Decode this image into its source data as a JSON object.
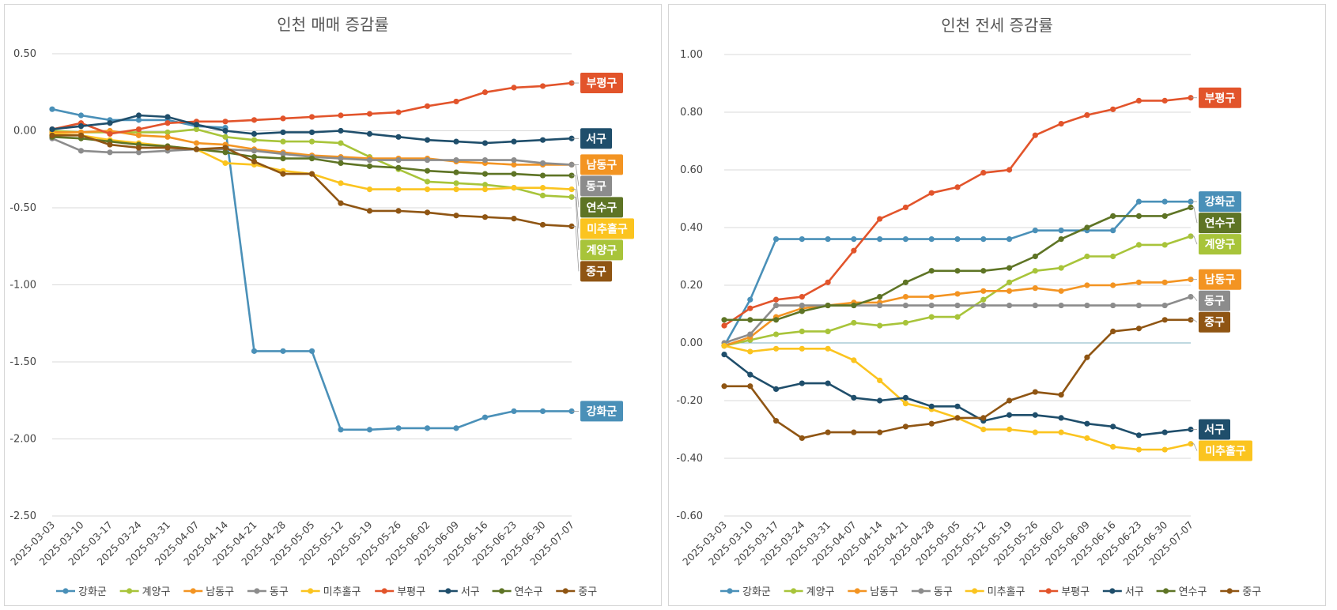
{
  "colors": {
    "강화군": "#4a90b8",
    "계양구": "#a8c43a",
    "남동구": "#f39422",
    "동구": "#8c8c8c",
    "미추홀구": "#fbc41f",
    "부평구": "#e2542b",
    "서구": "#1f4e6b",
    "연수구": "#5e7425",
    "중구": "#8f5513"
  },
  "chart_data": [
    {
      "type": "line",
      "title": "인천 매매 증감률",
      "xlabel": "",
      "ylabel": "",
      "ylim": [
        -2.5,
        0.5
      ],
      "y_ticks": [
        "0.50",
        "0.00",
        "-0.50",
        "-1.00",
        "-1.50",
        "-2.00",
        "-2.50"
      ],
      "grid": true,
      "legend": "bottom",
      "categories": [
        "2025-03-03",
        "2025-03-10",
        "2025-03-17",
        "2025-03-24",
        "2025-03-31",
        "2025-04-07",
        "2025-04-14",
        "2025-04-21",
        "2025-04-28",
        "2025-05-05",
        "2025-05-12",
        "2025-05-19",
        "2025-05-26",
        "2025-06-02",
        "2025-06-09",
        "2025-06-16",
        "2025-06-23",
        "2025-06-30",
        "2025-07-07"
      ],
      "series": [
        {
          "name": "강화군",
          "values": [
            0.14,
            0.1,
            0.07,
            0.07,
            0.07,
            0.03,
            0.02,
            -1.43,
            -1.43,
            -1.43,
            -1.94,
            -1.94,
            -1.93,
            -1.93,
            -1.93,
            -1.86,
            -1.82,
            -1.82,
            -1.82
          ]
        },
        {
          "name": "계양구",
          "values": [
            0.0,
            -0.01,
            -0.01,
            -0.01,
            -0.01,
            0.01,
            -0.04,
            -0.06,
            -0.07,
            -0.07,
            -0.08,
            -0.17,
            -0.25,
            -0.33,
            -0.34,
            -0.35,
            -0.37,
            -0.42,
            -0.43
          ]
        },
        {
          "name": "남동구",
          "values": [
            -0.01,
            -0.01,
            0.0,
            -0.03,
            -0.04,
            -0.08,
            -0.09,
            -0.12,
            -0.14,
            -0.16,
            -0.17,
            -0.18,
            -0.18,
            -0.18,
            -0.2,
            -0.21,
            -0.22,
            -0.22,
            -0.22
          ]
        },
        {
          "name": "동구",
          "values": [
            -0.05,
            -0.13,
            -0.14,
            -0.14,
            -0.13,
            -0.12,
            -0.12,
            -0.13,
            -0.15,
            -0.17,
            -0.18,
            -0.19,
            -0.19,
            -0.19,
            -0.19,
            -0.19,
            -0.19,
            -0.21,
            -0.22
          ]
        },
        {
          "name": "미추홀구",
          "values": [
            -0.02,
            -0.03,
            -0.06,
            -0.08,
            -0.1,
            -0.12,
            -0.21,
            -0.22,
            -0.26,
            -0.28,
            -0.34,
            -0.38,
            -0.38,
            -0.38,
            -0.38,
            -0.38,
            -0.37,
            -0.37,
            -0.38
          ]
        },
        {
          "name": "부평구",
          "values": [
            0.01,
            0.05,
            -0.02,
            0.01,
            0.05,
            0.06,
            0.06,
            0.07,
            0.08,
            0.09,
            0.1,
            0.11,
            0.12,
            0.16,
            0.19,
            0.25,
            0.28,
            0.29,
            0.31
          ]
        },
        {
          "name": "서구",
          "values": [
            0.01,
            0.03,
            0.05,
            0.1,
            0.09,
            0.04,
            0.0,
            -0.02,
            -0.01,
            -0.01,
            0.0,
            -0.02,
            -0.04,
            -0.06,
            -0.07,
            -0.08,
            -0.07,
            -0.06,
            -0.05
          ]
        },
        {
          "name": "연수구",
          "values": [
            -0.04,
            -0.05,
            -0.07,
            -0.09,
            -0.1,
            -0.12,
            -0.14,
            -0.17,
            -0.18,
            -0.18,
            -0.21,
            -0.23,
            -0.24,
            -0.26,
            -0.27,
            -0.28,
            -0.28,
            -0.29,
            -0.29
          ]
        },
        {
          "name": "중구",
          "values": [
            -0.03,
            -0.03,
            -0.09,
            -0.11,
            -0.11,
            -0.12,
            -0.11,
            -0.2,
            -0.28,
            -0.28,
            -0.47,
            -0.52,
            -0.52,
            -0.53,
            -0.55,
            -0.56,
            -0.57,
            -0.61,
            -0.62
          ]
        }
      ],
      "end_labels": [
        "부평구",
        "서구",
        "남동구",
        "동구",
        "연수구",
        "미추홀구",
        "계양구",
        "중구",
        "강화군"
      ]
    },
    {
      "type": "line",
      "title": "인천 전세 증감률",
      "xlabel": "",
      "ylabel": "",
      "ylim": [
        -0.6,
        1.0
      ],
      "y_ticks": [
        "1.00",
        "0.80",
        "0.60",
        "0.40",
        "0.20",
        "0.00",
        "-0.20",
        "-0.40",
        "-0.60"
      ],
      "grid": true,
      "legend": "bottom",
      "categories": [
        "2025-03-03",
        "2025-03-10",
        "2025-03-17",
        "2025-03-24",
        "2025-03-31",
        "2025-04-07",
        "2025-04-14",
        "2025-04-21",
        "2025-04-28",
        "2025-05-05",
        "2025-05-12",
        "2025-05-19",
        "2025-05-26",
        "2025-06-02",
        "2025-06-09",
        "2025-06-16",
        "2025-06-23",
        "2025-06-30",
        "2025-07-07"
      ],
      "series": [
        {
          "name": "강화군",
          "values": [
            -0.01,
            0.15,
            0.36,
            0.36,
            0.36,
            0.36,
            0.36,
            0.36,
            0.36,
            0.36,
            0.36,
            0.36,
            0.39,
            0.39,
            0.39,
            0.39,
            0.49,
            0.49,
            0.49
          ]
        },
        {
          "name": "계양구",
          "values": [
            -0.01,
            0.01,
            0.03,
            0.04,
            0.04,
            0.07,
            0.06,
            0.07,
            0.09,
            0.09,
            0.15,
            0.21,
            0.25,
            0.26,
            0.3,
            0.3,
            0.34,
            0.34,
            0.37
          ]
        },
        {
          "name": "남동구",
          "values": [
            -0.01,
            0.02,
            0.09,
            0.12,
            0.13,
            0.14,
            0.14,
            0.16,
            0.16,
            0.17,
            0.18,
            0.18,
            0.19,
            0.18,
            0.2,
            0.2,
            0.21,
            0.21,
            0.22
          ]
        },
        {
          "name": "동구",
          "values": [
            0.0,
            0.03,
            0.13,
            0.13,
            0.13,
            0.13,
            0.13,
            0.13,
            0.13,
            0.13,
            0.13,
            0.13,
            0.13,
            0.13,
            0.13,
            0.13,
            0.13,
            0.13,
            0.16
          ]
        },
        {
          "name": "미추홀구",
          "values": [
            -0.01,
            -0.03,
            -0.02,
            -0.02,
            -0.02,
            -0.06,
            -0.13,
            -0.21,
            -0.23,
            -0.26,
            -0.3,
            -0.3,
            -0.31,
            -0.31,
            -0.33,
            -0.36,
            -0.37,
            -0.37,
            -0.35
          ]
        },
        {
          "name": "부평구",
          "values": [
            0.06,
            0.12,
            0.15,
            0.16,
            0.21,
            0.32,
            0.43,
            0.47,
            0.52,
            0.54,
            0.59,
            0.6,
            0.72,
            0.76,
            0.79,
            0.81,
            0.84,
            0.84,
            0.85
          ]
        },
        {
          "name": "서구",
          "values": [
            -0.04,
            -0.11,
            -0.16,
            -0.14,
            -0.14,
            -0.19,
            -0.2,
            -0.19,
            -0.22,
            -0.22,
            -0.27,
            -0.25,
            -0.25,
            -0.26,
            -0.28,
            -0.29,
            -0.32,
            -0.31,
            -0.3
          ]
        },
        {
          "name": "연수구",
          "values": [
            0.08,
            0.08,
            0.08,
            0.11,
            0.13,
            0.13,
            0.16,
            0.21,
            0.25,
            0.25,
            0.25,
            0.26,
            0.3,
            0.36,
            0.4,
            0.44,
            0.44,
            0.44,
            0.47
          ]
        },
        {
          "name": "중구",
          "values": [
            -0.15,
            -0.15,
            -0.27,
            -0.33,
            -0.31,
            -0.31,
            -0.31,
            -0.29,
            -0.28,
            -0.26,
            -0.26,
            -0.2,
            -0.17,
            -0.18,
            -0.05,
            0.04,
            0.05,
            0.08,
            0.08
          ]
        }
      ],
      "end_labels": [
        "부평구",
        "강화군",
        "연수구",
        "계양구",
        "남동구",
        "동구",
        "중구",
        "서구",
        "미추홀구"
      ]
    }
  ]
}
